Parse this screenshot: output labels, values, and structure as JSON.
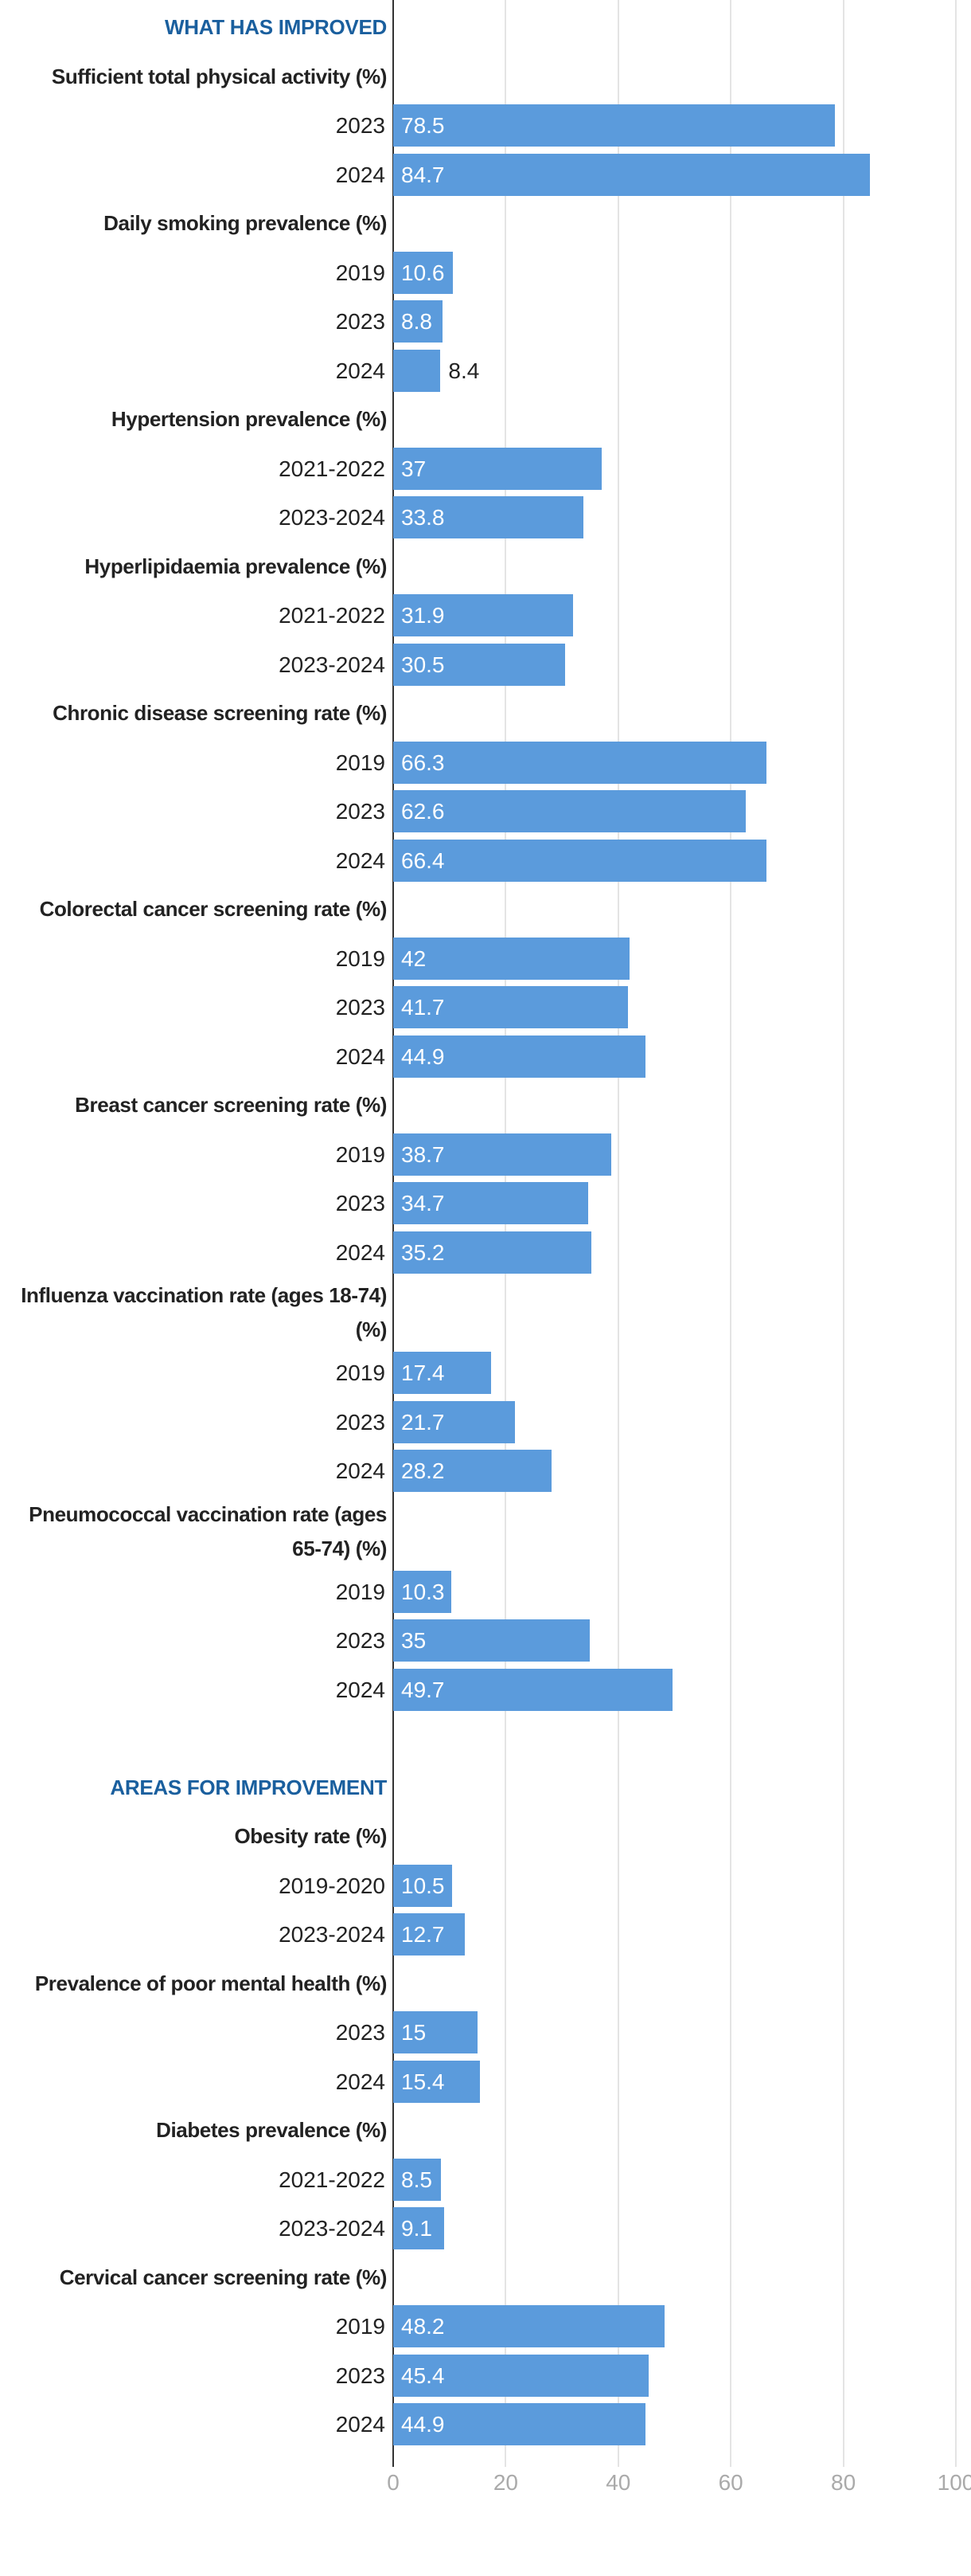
{
  "chart_data": {
    "type": "bar",
    "orientation": "horizontal",
    "color": "#5b9bdc",
    "xlim": [
      0,
      100
    ],
    "xticks": [
      0,
      20,
      40,
      60,
      80,
      100
    ],
    "grid": true,
    "sections": [
      {
        "title": "WHAT HAS IMPROVED",
        "groups": [
          {
            "label": "Sufficient total physical activity (%)",
            "categories": [
              "2023",
              "2024"
            ],
            "values": [
              78.5,
              84.7
            ]
          },
          {
            "label": "Daily smoking prevalence (%)",
            "categories": [
              "2019",
              "2023",
              "2024"
            ],
            "values": [
              10.6,
              8.8,
              8.4
            ]
          },
          {
            "label": "Hypertension prevalence (%)",
            "categories": [
              "2021-2022",
              "2023-2024"
            ],
            "values": [
              37,
              33.8
            ]
          },
          {
            "label": "Hyperlipidaemia prevalence (%)",
            "categories": [
              "2021-2022",
              "2023-2024"
            ],
            "values": [
              31.9,
              30.5
            ]
          },
          {
            "label": "Chronic disease screening rate (%)",
            "categories": [
              "2019",
              "2023",
              "2024"
            ],
            "values": [
              66.3,
              62.6,
              66.4
            ]
          },
          {
            "label": "Colorectal cancer screening rate (%)",
            "categories": [
              "2019",
              "2023",
              "2024"
            ],
            "values": [
              42,
              41.7,
              44.9
            ]
          },
          {
            "label": "Breast cancer screening rate (%)",
            "categories": [
              "2019",
              "2023",
              "2024"
            ],
            "values": [
              38.7,
              34.7,
              35.2
            ]
          },
          {
            "label": "Influenza vaccination rate (ages 18-74) (%)",
            "categories": [
              "2019",
              "2023",
              "2024"
            ],
            "values": [
              17.4,
              21.7,
              28.2
            ]
          },
          {
            "label": "Pneumococcal vaccination rate (ages 65-74) (%)",
            "categories": [
              "2019",
              "2023",
              "2024"
            ],
            "values": [
              10.3,
              35,
              49.7
            ]
          }
        ]
      },
      {
        "title": "AREAS FOR IMPROVEMENT",
        "groups": [
          {
            "label": "Obesity rate (%)",
            "categories": [
              "2019-2020",
              "2023-2024"
            ],
            "values": [
              10.5,
              12.7
            ]
          },
          {
            "label": "Prevalence of poor mental health (%)",
            "categories": [
              "2023",
              "2024"
            ],
            "values": [
              15,
              15.4
            ]
          },
          {
            "label": "Diabetes prevalence (%)",
            "categories": [
              "2021-2022",
              "2023-2024"
            ],
            "values": [
              8.5,
              9.1
            ]
          },
          {
            "label": "Cervical cancer screening rate (%)",
            "categories": [
              "2019",
              "2023",
              "2024"
            ],
            "values": [
              48.2,
              45.4,
              44.9
            ]
          }
        ]
      }
    ]
  }
}
